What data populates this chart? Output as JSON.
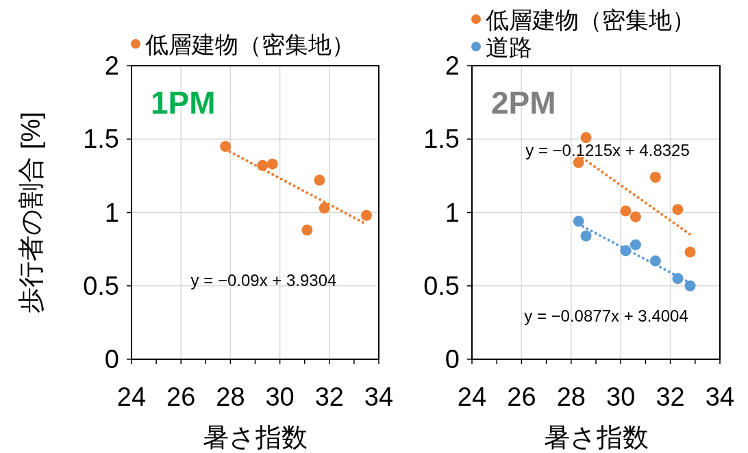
{
  "chart_data": [
    {
      "type": "scatter",
      "title": "1PM",
      "ylabel": "歩行者の割合 [%]",
      "xlabel": "暑さ指数",
      "series": [
        {
          "name": "低層建物（密集地）",
          "color": "#ed7d31",
          "x": [
            27.8,
            29.3,
            29.7,
            31.6,
            31.1,
            31.8,
            33.5
          ],
          "values": [
            1.45,
            1.32,
            1.33,
            1.22,
            0.88,
            1.03,
            0.98
          ]
        },
        {
          "type": "line",
          "color": "#ed7d31",
          "line_style": "dotted",
          "marker": "none",
          "x": [
            27.8,
            33.5
          ],
          "values": [
            1.43,
            0.92
          ]
        }
      ],
      "annotations": [
        "y = −0.09x + 3.9304"
      ],
      "xlim": [
        24,
        34
      ],
      "ylim": [
        0,
        2
      ],
      "xticks": [
        24,
        {
          "value": 25,
          "label": null
        },
        26,
        {
          "value": 27,
          "label": null
        },
        28,
        {
          "value": 29,
          "label": null
        },
        30,
        {
          "value": 31,
          "label": null
        },
        32,
        {
          "value": 33,
          "label": null
        },
        34
      ],
      "yticks": [
        0,
        0.5,
        1,
        1.5,
        2
      ],
      "grid": true,
      "legend": "top",
      "marker": "circle"
    },
    {
      "type": "scatter",
      "title": "2PM",
      "xlabel": "暑さ指数",
      "series": [
        {
          "name": "低層建物（密集地）",
          "color": "#ed7d31",
          "x": [
            28.3,
            28.6,
            31.4,
            30.2,
            30.6,
            32.3,
            32.8
          ],
          "values": [
            1.34,
            1.51,
            1.24,
            1.01,
            0.97,
            1.02,
            0.73
          ]
        },
        {
          "name": "道路",
          "color": "#5b9bd5",
          "x": [
            28.3,
            28.6,
            30.2,
            30.6,
            31.4,
            32.3,
            32.8
          ],
          "values": [
            0.94,
            0.84,
            0.74,
            0.78,
            0.67,
            0.55,
            0.5
          ]
        },
        {
          "type": "line",
          "color": "#ed7d31",
          "line_style": "dotted",
          "marker": "none",
          "x": [
            28.3,
            32.8
          ],
          "values": [
            1.39,
            0.85
          ]
        },
        {
          "type": "line",
          "color": "#5b9bd5",
          "line_style": "dotted",
          "marker": "none",
          "x": [
            28.3,
            32.8
          ],
          "values": [
            0.92,
            0.52
          ]
        }
      ],
      "annotations": [
        "y = −0.1215x + 4.8325",
        "y = −0.0877x + 3.4004"
      ],
      "xlim": [
        24,
        34
      ],
      "ylim": [
        0,
        2
      ],
      "xticks": [
        24,
        {
          "value": 25,
          "label": null
        },
        26,
        {
          "value": 27,
          "label": null
        },
        28,
        {
          "value": 29,
          "label": null
        },
        30,
        {
          "value": 31,
          "label": null
        },
        32,
        {
          "value": 33,
          "label": null
        },
        34
      ],
      "yticks": [
        0,
        0.5,
        1,
        1.5,
        2
      ],
      "grid": true,
      "legend": "top",
      "marker": "circle"
    }
  ]
}
